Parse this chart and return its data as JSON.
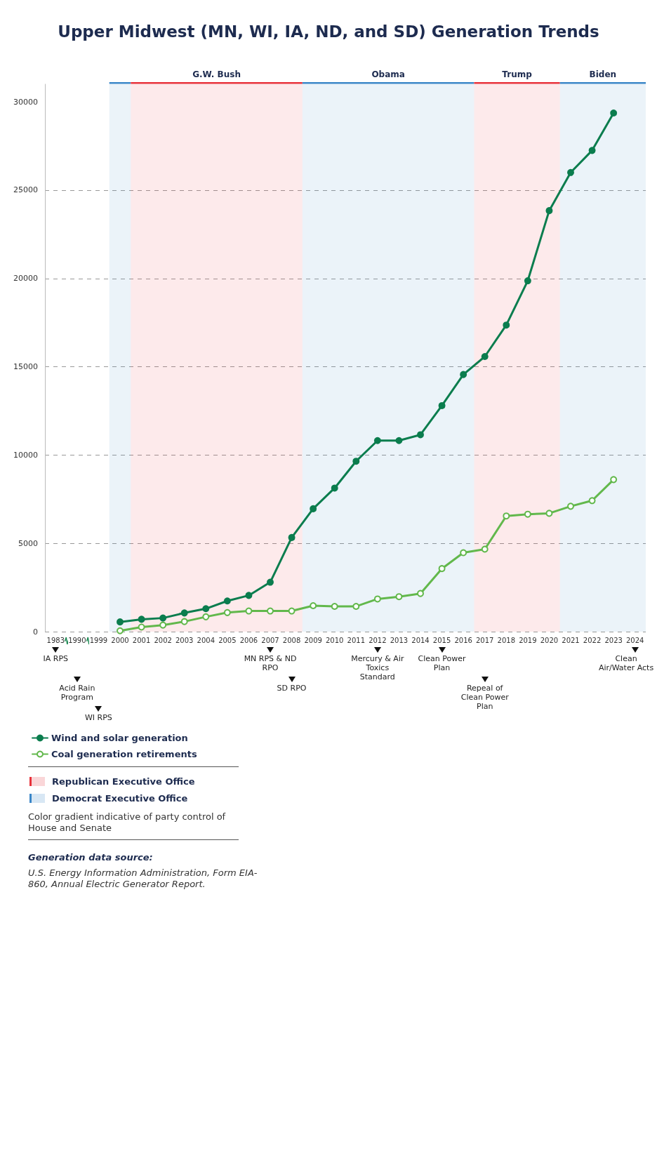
{
  "chart_data": {
    "type": "line",
    "title": "Upper Midwest (MN, WI, IA, ND, and SD) Generation Trends",
    "categories": [
      "1983",
      "1990",
      "1999",
      "2000",
      "2001",
      "2002",
      "2003",
      "2004",
      "2005",
      "2006",
      "2007",
      "2008",
      "2009",
      "2010",
      "2011",
      "2012",
      "2013",
      "2014",
      "2015",
      "2016",
      "2017",
      "2018",
      "2019",
      "2020",
      "2021",
      "2022",
      "2023",
      "2024"
    ],
    "series": [
      {
        "name": "Wind and solar generation",
        "color": "#0b7d4e",
        "values": [
          null,
          null,
          null,
          550,
          700,
          770,
          1060,
          1300,
          1740,
          2050,
          2800,
          5330,
          6960,
          8130,
          9650,
          10820,
          10820,
          11150,
          12800,
          14560,
          15580,
          17360,
          19870,
          23840,
          26000,
          27250,
          29370,
          null
        ]
      },
      {
        "name": "Coal generation retirements",
        "color": "#62b84c",
        "values": [
          null,
          null,
          null,
          50,
          260,
          370,
          570,
          840,
          1080,
          1170,
          1170,
          1170,
          1470,
          1430,
          1430,
          1850,
          1980,
          2160,
          3570,
          4470,
          4670,
          6550,
          6650,
          6700,
          7100,
          7420,
          8610,
          null
        ]
      }
    ],
    "ylim": [
      0,
      31000
    ],
    "yticks": [
      0,
      5000,
      10000,
      15000,
      20000,
      25000,
      30000
    ],
    "grid": "y",
    "legend": "bottom",
    "marker": "circle",
    "line_style": "solid",
    "bands": [
      {
        "axis": "x",
        "from": "2000",
        "to": "2000",
        "color": "#3a86c8"
      },
      {
        "axis": "x",
        "from": "2001",
        "to": "2008",
        "label": "G.W. Bush",
        "color": "#e8313a"
      },
      {
        "axis": "x",
        "from": "2009",
        "to": "2016",
        "label": "Obama",
        "color": "#3a86c8"
      },
      {
        "axis": "x",
        "from": "2017",
        "to": "2020",
        "label": "Trump",
        "color": "#e8313a"
      },
      {
        "axis": "x",
        "from": "2021",
        "to": "2024",
        "label": "Biden",
        "color": "#3a86c8"
      }
    ],
    "annotations": [
      "Republican Executive Office",
      "Democrat Executive Office",
      "Color gradient indicative of party control of House and Senate",
      "Generation data source:",
      "U.S. Energy Information Administration, Form EIA-860, Annual Electric Generator Report.",
      "IA RPS",
      "Acid Rain Program",
      "WI RPS",
      "MN RPS & ND RPO",
      "SD RPO",
      "Mercury & Air Toxics Standard",
      "Clean Power Plan",
      "Repeal of Clean Power Plan",
      "Clean Air/Water Acts"
    ]
  }
}
